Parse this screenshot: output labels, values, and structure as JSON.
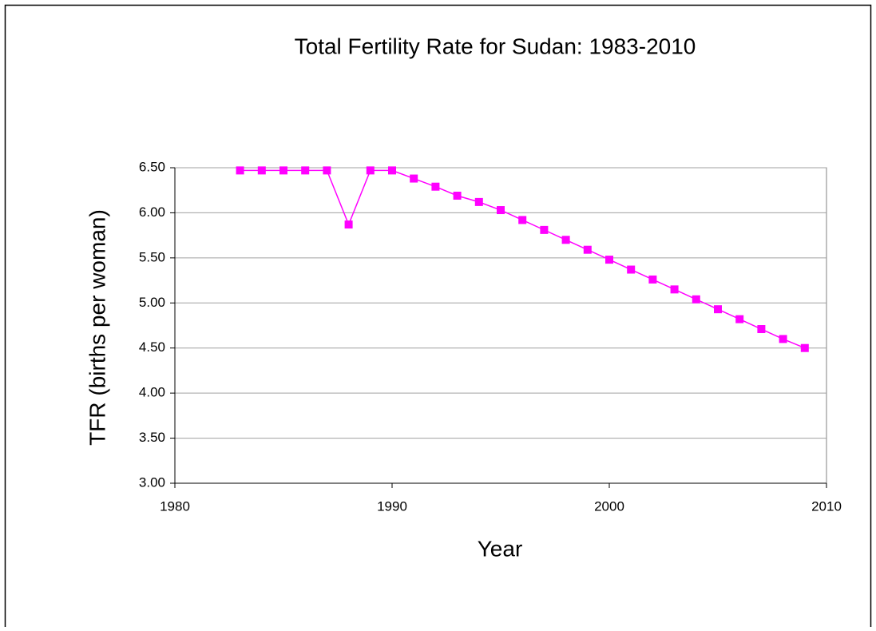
{
  "chart_data": {
    "type": "line",
    "title": "Total Fertility Rate for Sudan:  1983-2010",
    "x_label": "Year",
    "y_label": "TFR (births per woman)",
    "x": [
      1983,
      1984,
      1985,
      1986,
      1987,
      1988,
      1989,
      1990,
      1991,
      1992,
      1993,
      1994,
      1995,
      1996,
      1997,
      1998,
      1999,
      2000,
      2001,
      2002,
      2003,
      2004,
      2005,
      2006,
      2007,
      2008,
      2009
    ],
    "series": [
      {
        "color": "#ff00ff",
        "values": [
          6.47,
          6.47,
          6.47,
          6.47,
          6.47,
          5.87,
          6.47,
          6.47,
          6.38,
          6.29,
          6.19,
          6.12,
          6.03,
          5.92,
          5.81,
          5.7,
          5.59,
          5.48,
          5.37,
          5.26,
          5.15,
          5.04,
          4.93,
          4.82,
          4.71,
          4.6,
          4.5
        ]
      }
    ],
    "xlim": [
      1980,
      2010
    ],
    "xticks": [
      1980,
      1990,
      2000,
      2010
    ],
    "ylim": [
      3,
      6.5
    ],
    "yticks": [
      {
        "value": 3,
        "label": "3.00"
      },
      {
        "value": 3.5,
        "label": "3.50"
      },
      {
        "value": 4,
        "label": "4.00"
      },
      {
        "value": 4.5,
        "label": "4.50"
      },
      {
        "value": 5,
        "label": "5.00"
      },
      {
        "value": 5.5,
        "label": "5.50"
      },
      {
        "value": 6,
        "label": "6.00"
      },
      {
        "value": 6.5,
        "label": "6.50"
      }
    ],
    "grid": true
  }
}
